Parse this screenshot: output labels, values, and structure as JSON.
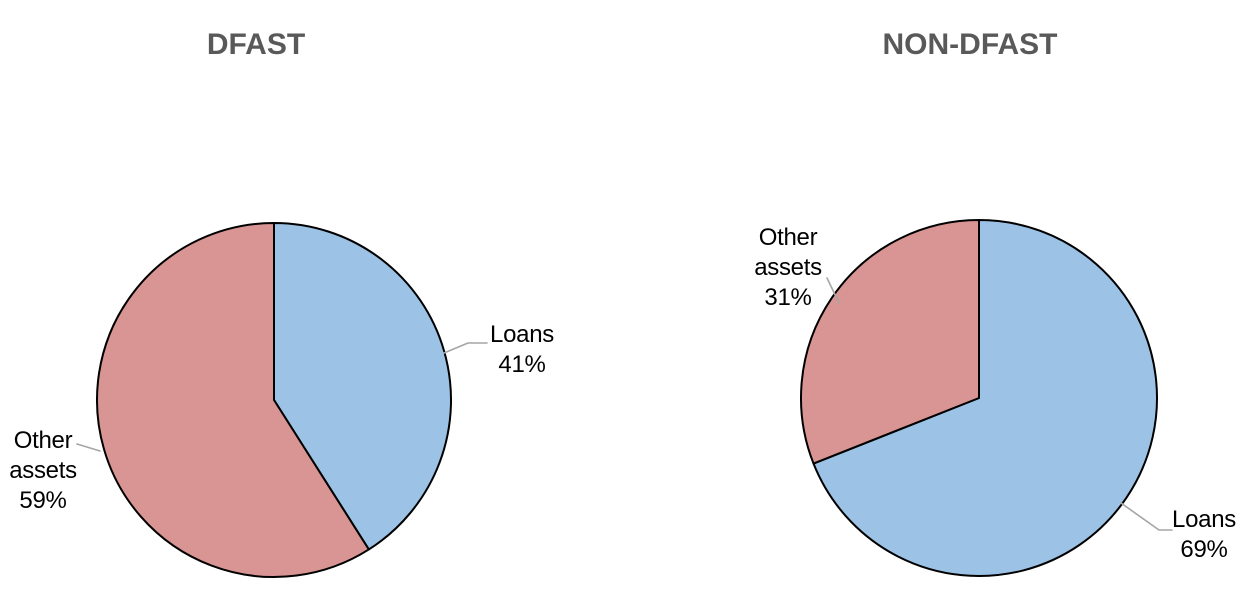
{
  "page": {
    "background_color": "#ffffff",
    "title_color": "#595959",
    "label_color": "#000000",
    "leader_line_color": "#a6a6a6",
    "slice_outline_color": "#000000"
  },
  "chart_data": [
    {
      "type": "pie",
      "title": "DFAST",
      "labels": [
        "Loans",
        "Other assets"
      ],
      "values": [
        41,
        59
      ],
      "pct_labels": [
        "41%",
        "59%"
      ],
      "colors": [
        "#9cc3e6",
        "#d99594"
      ],
      "start_angle_deg": 0,
      "direction": "clockwise",
      "legend": "none",
      "data_labels": "outside-with-leader-lines"
    },
    {
      "type": "pie",
      "title": "NON-DFAST",
      "labels": [
        "Loans",
        "Other assets"
      ],
      "values": [
        69,
        31
      ],
      "pct_labels": [
        "69%",
        "31%"
      ],
      "colors": [
        "#9cc3e6",
        "#d99594"
      ],
      "start_angle_deg": 0,
      "direction": "clockwise",
      "legend": "none",
      "data_labels": "outside-with-leader-lines"
    }
  ]
}
